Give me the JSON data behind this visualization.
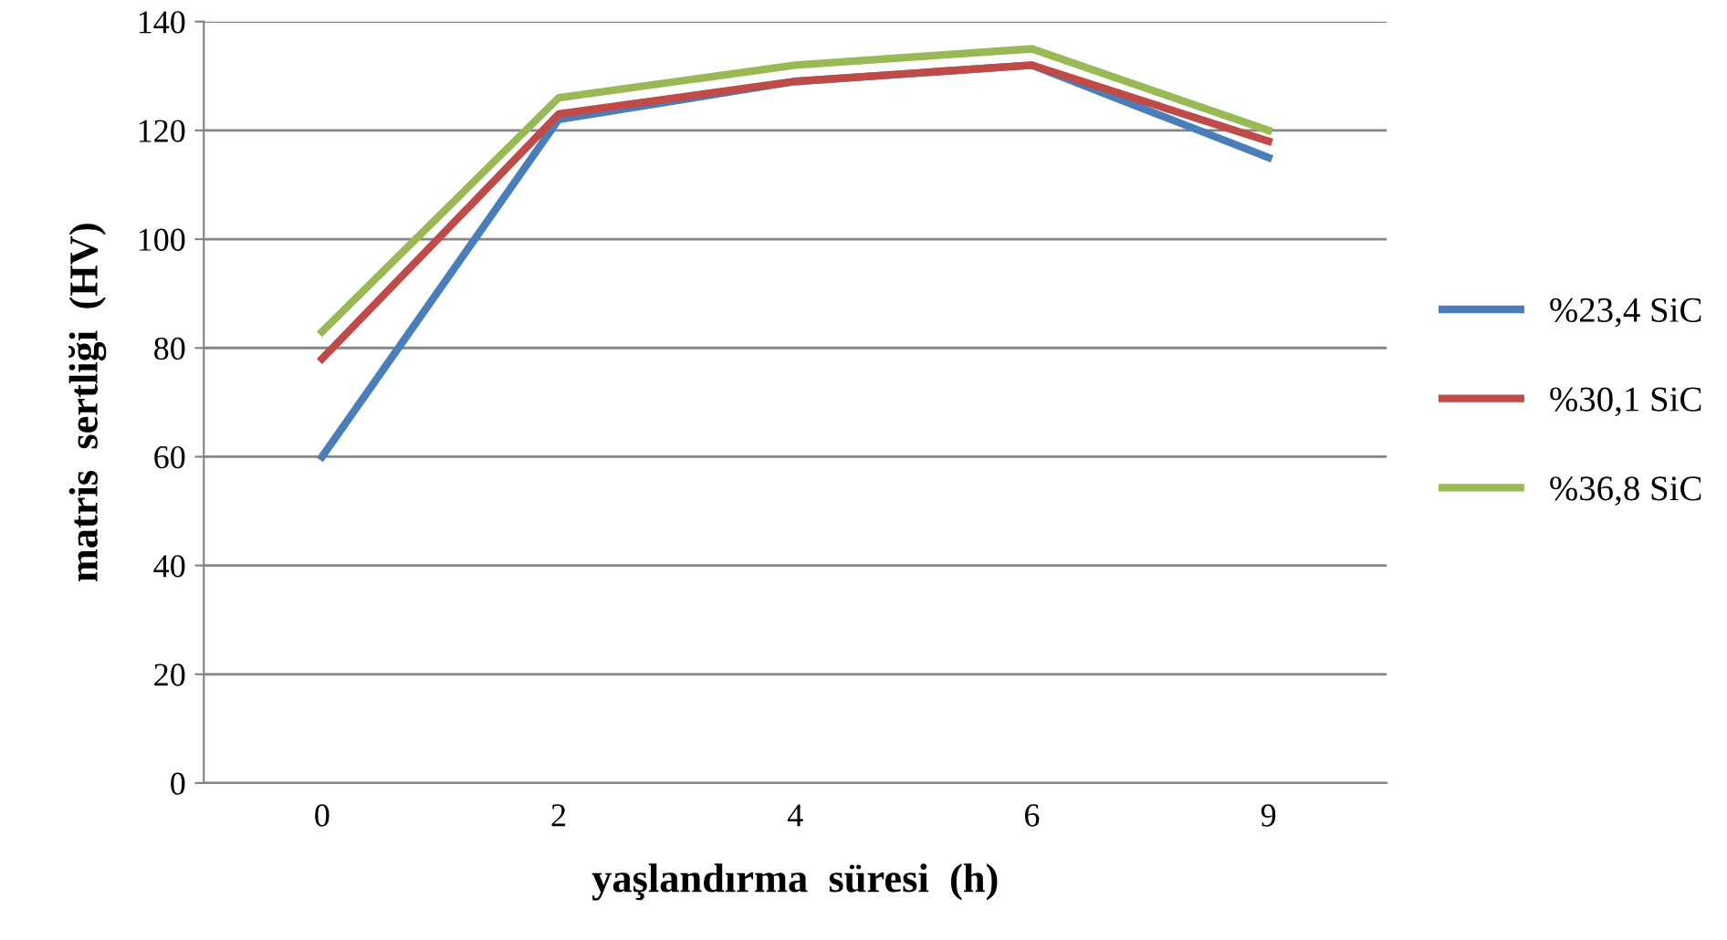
{
  "chart_data": {
    "type": "line",
    "xlabel": "yaşlandırma  süresi  (h)",
    "ylabel": "matris  sertliği  (HV)",
    "categories": [
      "0",
      "2",
      "4",
      "6",
      "9"
    ],
    "series": [
      {
        "name": "%23,4 SiC",
        "color": "#4a7ebb",
        "values": [
          60,
          122,
          129,
          132,
          115
        ]
      },
      {
        "name": "%30,1 SiC",
        "color": "#be4b48",
        "values": [
          78,
          123,
          129,
          132,
          118
        ]
      },
      {
        "name": "%36,8 SiC",
        "color": "#98b954",
        "values": [
          83,
          126,
          132,
          135,
          120
        ]
      }
    ],
    "ylim": [
      0,
      140
    ],
    "yticks": [
      0,
      20,
      40,
      60,
      80,
      100,
      120,
      140
    ],
    "grid": "y",
    "legend": "right",
    "marker": "none",
    "line_style": "solid"
  }
}
